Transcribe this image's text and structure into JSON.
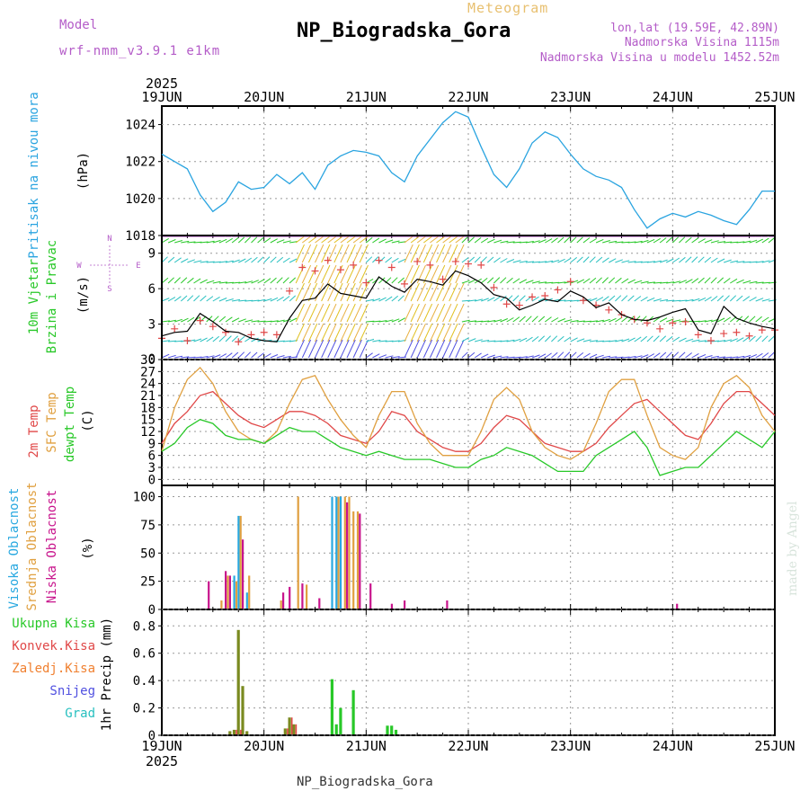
{
  "header": {
    "model_label": "Model",
    "model_name": "wrf-nmm_v3.9.1  e1km",
    "meteogram_label": "Meteogram",
    "station_title": "NP_Biogradska_Gora",
    "lonlat": "lon,lat (19.59E, 42.89N)",
    "altitude": "Nadmorska Visina 1115m",
    "model_altitude": "Nadmorska Visina u modelu 1452.52m",
    "footer_station": "NP_Biogradska_Gora",
    "watermark": "made by Angel"
  },
  "colors": {
    "pressure": "#2aa4e0",
    "temp2m": "#e04848",
    "sfc": "#e0a040",
    "dewpt": "#28c828",
    "vjetar": "#28c828",
    "brzina": "#28c828",
    "visoka": "#28a8e0",
    "srednja": "#e0a040",
    "niska": "#c8148c",
    "ukupna": "#28c828",
    "konvek": "#e04848",
    "zaledj": "#f08030",
    "snijeg": "#5050e0",
    "grad": "#28c0c0",
    "precip_bar": "#7a8a20",
    "meta": "#b45cc8"
  },
  "chart_data": [
    {
      "type": "line",
      "panel": "pressure",
      "ylabel_name": "Pritisak na nivou mora",
      "ylabel_unit": "(hPa)",
      "ylim": [
        1018,
        1025
      ],
      "yticks": [
        "1018",
        "1020",
        "1022",
        "1024"
      ],
      "xticks_top": [
        "19JUN",
        "20JUN",
        "21JUN",
        "22JUN",
        "23JUN",
        "24JUN",
        "25JUN"
      ],
      "year_top": "2025",
      "x_hours": [
        0,
        3,
        6,
        9,
        12,
        15,
        18,
        21,
        24,
        27,
        30,
        33,
        36,
        39,
        42,
        45,
        48,
        51,
        54,
        57,
        60,
        63,
        66,
        69,
        72,
        75,
        78,
        81,
        84,
        87,
        90,
        93,
        96,
        99,
        102,
        105,
        108,
        111,
        114,
        117,
        120,
        123,
        126,
        129,
        132,
        135,
        138,
        141,
        144
      ],
      "values": [
        1022.4,
        1022.0,
        1021.6,
        1020.2,
        1019.3,
        1019.8,
        1020.9,
        1020.5,
        1020.6,
        1021.3,
        1020.8,
        1021.4,
        1020.5,
        1021.8,
        1022.3,
        1022.6,
        1022.5,
        1022.3,
        1021.4,
        1020.9,
        1022.3,
        1023.2,
        1024.1,
        1024.7,
        1024.4,
        1022.8,
        1021.3,
        1020.6,
        1021.6,
        1023.0,
        1023.6,
        1023.3,
        1022.4,
        1021.6,
        1021.2,
        1021.0,
        1020.6,
        1019.4,
        1018.4,
        1018.9,
        1019.2,
        1019.0,
        1019.3,
        1019.1,
        1018.8,
        1018.6,
        1019.4,
        1020.4,
        1020.4
      ],
      "series_name": "pressure"
    },
    {
      "type": "line",
      "panel": "wind",
      "ylabel_lines": [
        "10m Vjetar",
        "Brzina i Pravac"
      ],
      "ylabel_unit": "(m/s)",
      "compass": [
        "N",
        "W",
        "E",
        "S"
      ],
      "ylim": [
        0,
        10.5
      ],
      "yticks": [
        "3",
        "6",
        "9"
      ],
      "x_hours": [
        0,
        3,
        6,
        9,
        12,
        15,
        18,
        21,
        24,
        27,
        30,
        33,
        36,
        39,
        42,
        45,
        48,
        51,
        54,
        57,
        60,
        63,
        66,
        69,
        72,
        75,
        78,
        81,
        84,
        87,
        90,
        93,
        96,
        99,
        102,
        105,
        108,
        111,
        114,
        117,
        120,
        123,
        126,
        129,
        132,
        135,
        138,
        141,
        144
      ],
      "speed": [
        2.0,
        2.3,
        2.4,
        3.9,
        3.2,
        2.4,
        2.3,
        1.8,
        1.6,
        1.5,
        3.5,
        5.0,
        5.2,
        6.4,
        5.6,
        5.4,
        5.2,
        7.0,
        6.2,
        5.7,
        6.8,
        6.6,
        6.3,
        7.5,
        7.1,
        6.5,
        5.5,
        5.2,
        4.2,
        4.6,
        5.1,
        4.9,
        5.8,
        5.3,
        4.4,
        4.8,
        3.8,
        3.4,
        3.3,
        3.6,
        4.0,
        4.3,
        2.5,
        2.2,
        4.5,
        3.5,
        3.1,
        2.8,
        2.6
      ],
      "gust_markers": [
        1.8,
        2.6,
        1.6,
        3.3,
        2.8,
        2.3,
        1.5,
        2.1,
        2.3,
        2.1,
        5.8,
        7.8,
        7.5,
        8.4,
        7.6,
        8.0,
        6.5,
        8.4,
        7.8,
        6.4,
        8.3,
        8.0,
        6.8,
        8.3,
        8.1,
        8.0,
        6.1,
        4.7,
        4.6,
        5.3,
        5.4,
        5.9,
        6.6,
        5.0,
        4.6,
        4.2,
        3.8,
        3.4,
        3.1,
        2.6,
        3.1,
        3.2,
        2.1,
        1.6,
        2.2,
        2.3,
        2.0,
        2.5,
        2.5
      ],
      "series_name": "wind speed"
    },
    {
      "type": "line",
      "panel": "temperature",
      "ylabel_lines": [
        "2m Temp",
        "SFC Temp",
        "dewpt Temp"
      ],
      "ylabel_unit": "(C)",
      "ylim": [
        -1.5,
        30
      ],
      "yticks": [
        "0",
        "3",
        "6",
        "9",
        "12",
        "15",
        "18",
        "21",
        "24",
        "27",
        "30"
      ],
      "x_hours": [
        0,
        3,
        6,
        9,
        12,
        15,
        18,
        21,
        24,
        27,
        30,
        33,
        36,
        39,
        42,
        45,
        48,
        51,
        54,
        57,
        60,
        63,
        66,
        69,
        72,
        75,
        78,
        81,
        84,
        87,
        90,
        93,
        96,
        99,
        102,
        105,
        108,
        111,
        114,
        117,
        120,
        123,
        126,
        129,
        132,
        135,
        138,
        141,
        144
      ],
      "series": [
        {
          "name": "2m Temp",
          "values": [
            9,
            14,
            17,
            21,
            22,
            19,
            16,
            14,
            13,
            15,
            17,
            17,
            16,
            14,
            11,
            10,
            9,
            12,
            17,
            16,
            12,
            10,
            8,
            7,
            7,
            9,
            13,
            16,
            15,
            12,
            9,
            8,
            7,
            7,
            9,
            13,
            16,
            19,
            20,
            17,
            14,
            11,
            10,
            14,
            19,
            22,
            22,
            19,
            16
          ]
        },
        {
          "name": "SFC Temp",
          "values": [
            7,
            18,
            25,
            28,
            24,
            17,
            12,
            10,
            9,
            12,
            19,
            25,
            26,
            20,
            15,
            11,
            8,
            16,
            22,
            22,
            14,
            9,
            6,
            6,
            6,
            12,
            20,
            23,
            20,
            12,
            8,
            6,
            5,
            7,
            14,
            22,
            25,
            25,
            16,
            8,
            6,
            5,
            8,
            18,
            24,
            26,
            23,
            16,
            12
          ]
        },
        {
          "name": "dewpt Temp",
          "values": [
            7,
            9,
            13,
            15,
            14,
            11,
            10,
            10,
            9,
            11,
            13,
            12,
            12,
            10,
            8,
            7,
            6,
            7,
            6,
            5,
            5,
            5,
            4,
            3,
            3,
            5,
            6,
            8,
            7,
            6,
            4,
            2,
            2,
            2,
            6,
            8,
            10,
            12,
            8,
            1,
            2,
            3,
            3,
            6,
            9,
            12,
            10,
            8,
            12
          ]
        }
      ]
    },
    {
      "type": "bar",
      "panel": "cloud",
      "ylabel_lines": [
        "Visoka Oblacnost",
        "Srednja Oblacnost",
        "Niska Oblacnost"
      ],
      "ylabel_unit": "(%)",
      "ylim": [
        0,
        110
      ],
      "yticks": [
        "0",
        "25",
        "50",
        "75",
        "100"
      ],
      "series": [
        {
          "name": "Visoka Oblacnost",
          "x_hours": [
            17,
            18,
            20,
            40,
            41,
            42
          ],
          "values": [
            30,
            83,
            15,
            100,
            100,
            100
          ]
        },
        {
          "name": "Srednja Oblacnost",
          "x_hours": [
            14,
            15.5,
            17.5,
            18.5,
            20.5,
            28,
            32,
            34,
            41.5,
            43,
            44,
            45,
            46
          ],
          "values": [
            8,
            30,
            25,
            83,
            30,
            8,
            100,
            22,
            100,
            100,
            100,
            87,
            87
          ]
        },
        {
          "name": "Niska Oblacnost",
          "x_hours": [
            11,
            15,
            16,
            19,
            28.5,
            30,
            33,
            37,
            43.5,
            46.5,
            49,
            54,
            57,
            67,
            121
          ],
          "values": [
            25,
            34,
            30,
            62,
            15,
            20,
            23,
            10,
            95,
            85,
            23,
            5,
            8,
            8,
            5
          ]
        }
      ]
    },
    {
      "type": "bar",
      "panel": "precip",
      "ylabel_lines": [
        "Ukupna Kisa",
        "Konvek.Kisa",
        "Zaledj.Kisa",
        "Snijeg",
        "Grad"
      ],
      "ylabel_unit": "1hr Precip (mm)",
      "ylim": [
        0,
        0.92
      ],
      "yticks": [
        "0",
        "0.2",
        "0.4",
        "0.6",
        "0.8"
      ],
      "xticks_bottom": [
        "19JUN",
        "20JUN",
        "21JUN",
        "22JUN",
        "23JUN",
        "24JUN",
        "25JUN"
      ],
      "year_bottom": "2025",
      "series": [
        {
          "name": "Ukupna Kisa",
          "x_hours": [
            16,
            17,
            18,
            19,
            20,
            29,
            30,
            31,
            40,
            41,
            42,
            45,
            53,
            54,
            55
          ],
          "values": [
            0.03,
            0.04,
            0.77,
            0.36,
            0.03,
            0.05,
            0.13,
            0.08,
            0.41,
            0.08,
            0.2,
            0.33,
            0.07,
            0.07,
            0.04
          ]
        },
        {
          "name": "Konvek.Kisa",
          "x_hours": [
            17,
            18,
            29,
            30,
            31
          ],
          "values": [
            0.04,
            0.04,
            0.05,
            0.13,
            0.08
          ]
        }
      ]
    }
  ]
}
